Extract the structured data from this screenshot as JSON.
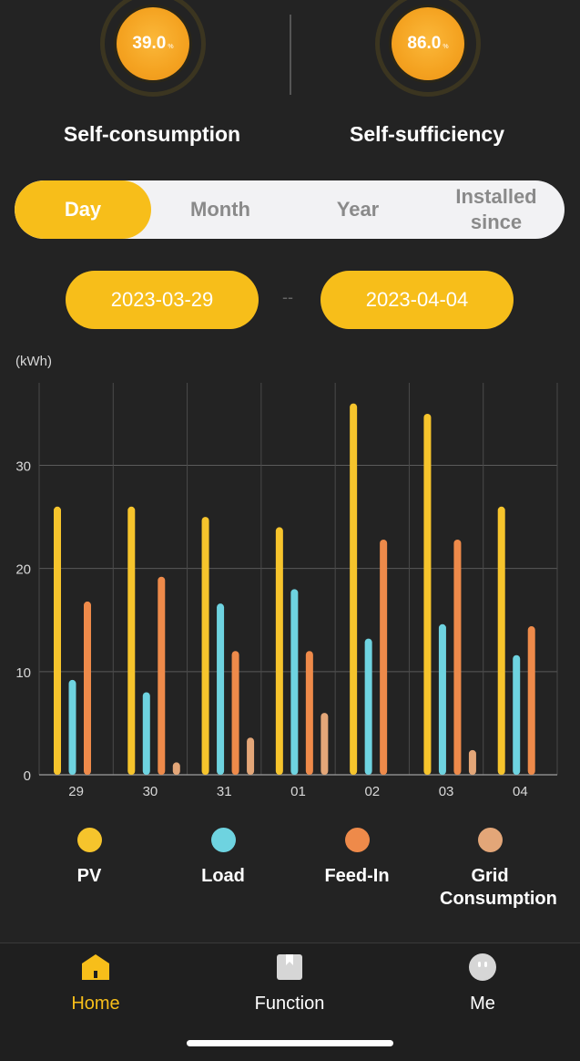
{
  "metrics": {
    "self_consumption": {
      "value": "39.0",
      "unit": "%",
      "label": "Self-consumption"
    },
    "self_sufficiency": {
      "value": "86.0",
      "unit": "%",
      "label": "Self-sufficiency"
    }
  },
  "period_tabs": {
    "day": "Day",
    "month": "Month",
    "year": "Year",
    "installed": "Installed since",
    "selected": "Day"
  },
  "date_range": {
    "start": "2023-03-29",
    "separator": "--",
    "end": "2023-04-04"
  },
  "chart_data": {
    "type": "bar",
    "ylabel": "(kWh)",
    "ylim": [
      0,
      38
    ],
    "yticks": [
      0,
      10,
      20,
      30
    ],
    "grid": true,
    "categories": [
      "29",
      "30",
      "31",
      "01",
      "02",
      "03",
      "04"
    ],
    "series": [
      {
        "name": "PV",
        "color": "#f6c42c",
        "values": [
          26,
          26,
          25,
          24,
          36,
          35,
          26
        ]
      },
      {
        "name": "Load",
        "color": "#6ed3e0",
        "values": [
          9.2,
          8,
          16.6,
          18,
          13.2,
          14.6,
          11.6
        ]
      },
      {
        "name": "Feed-In",
        "color": "#ee8a4a",
        "values": [
          16.8,
          19.2,
          12,
          12,
          22.8,
          22.8,
          14.4
        ]
      },
      {
        "name": "Grid Consumption",
        "color": "#e3a678",
        "values": [
          0,
          1.2,
          3.6,
          6,
          0,
          2.4,
          0
        ]
      }
    ]
  },
  "legend": [
    {
      "label": "PV",
      "color": "#f6c42c"
    },
    {
      "label": "Load",
      "color": "#6ed3e0"
    },
    {
      "label": "Feed-In",
      "color": "#ee8a4a"
    },
    {
      "label": "Grid Consumption",
      "color": "#e3a678"
    }
  ],
  "tabbar": {
    "home": "Home",
    "function": "Function",
    "me": "Me",
    "home_icon": "home-icon",
    "function_icon": "book-icon",
    "me_icon": "face-icon"
  }
}
